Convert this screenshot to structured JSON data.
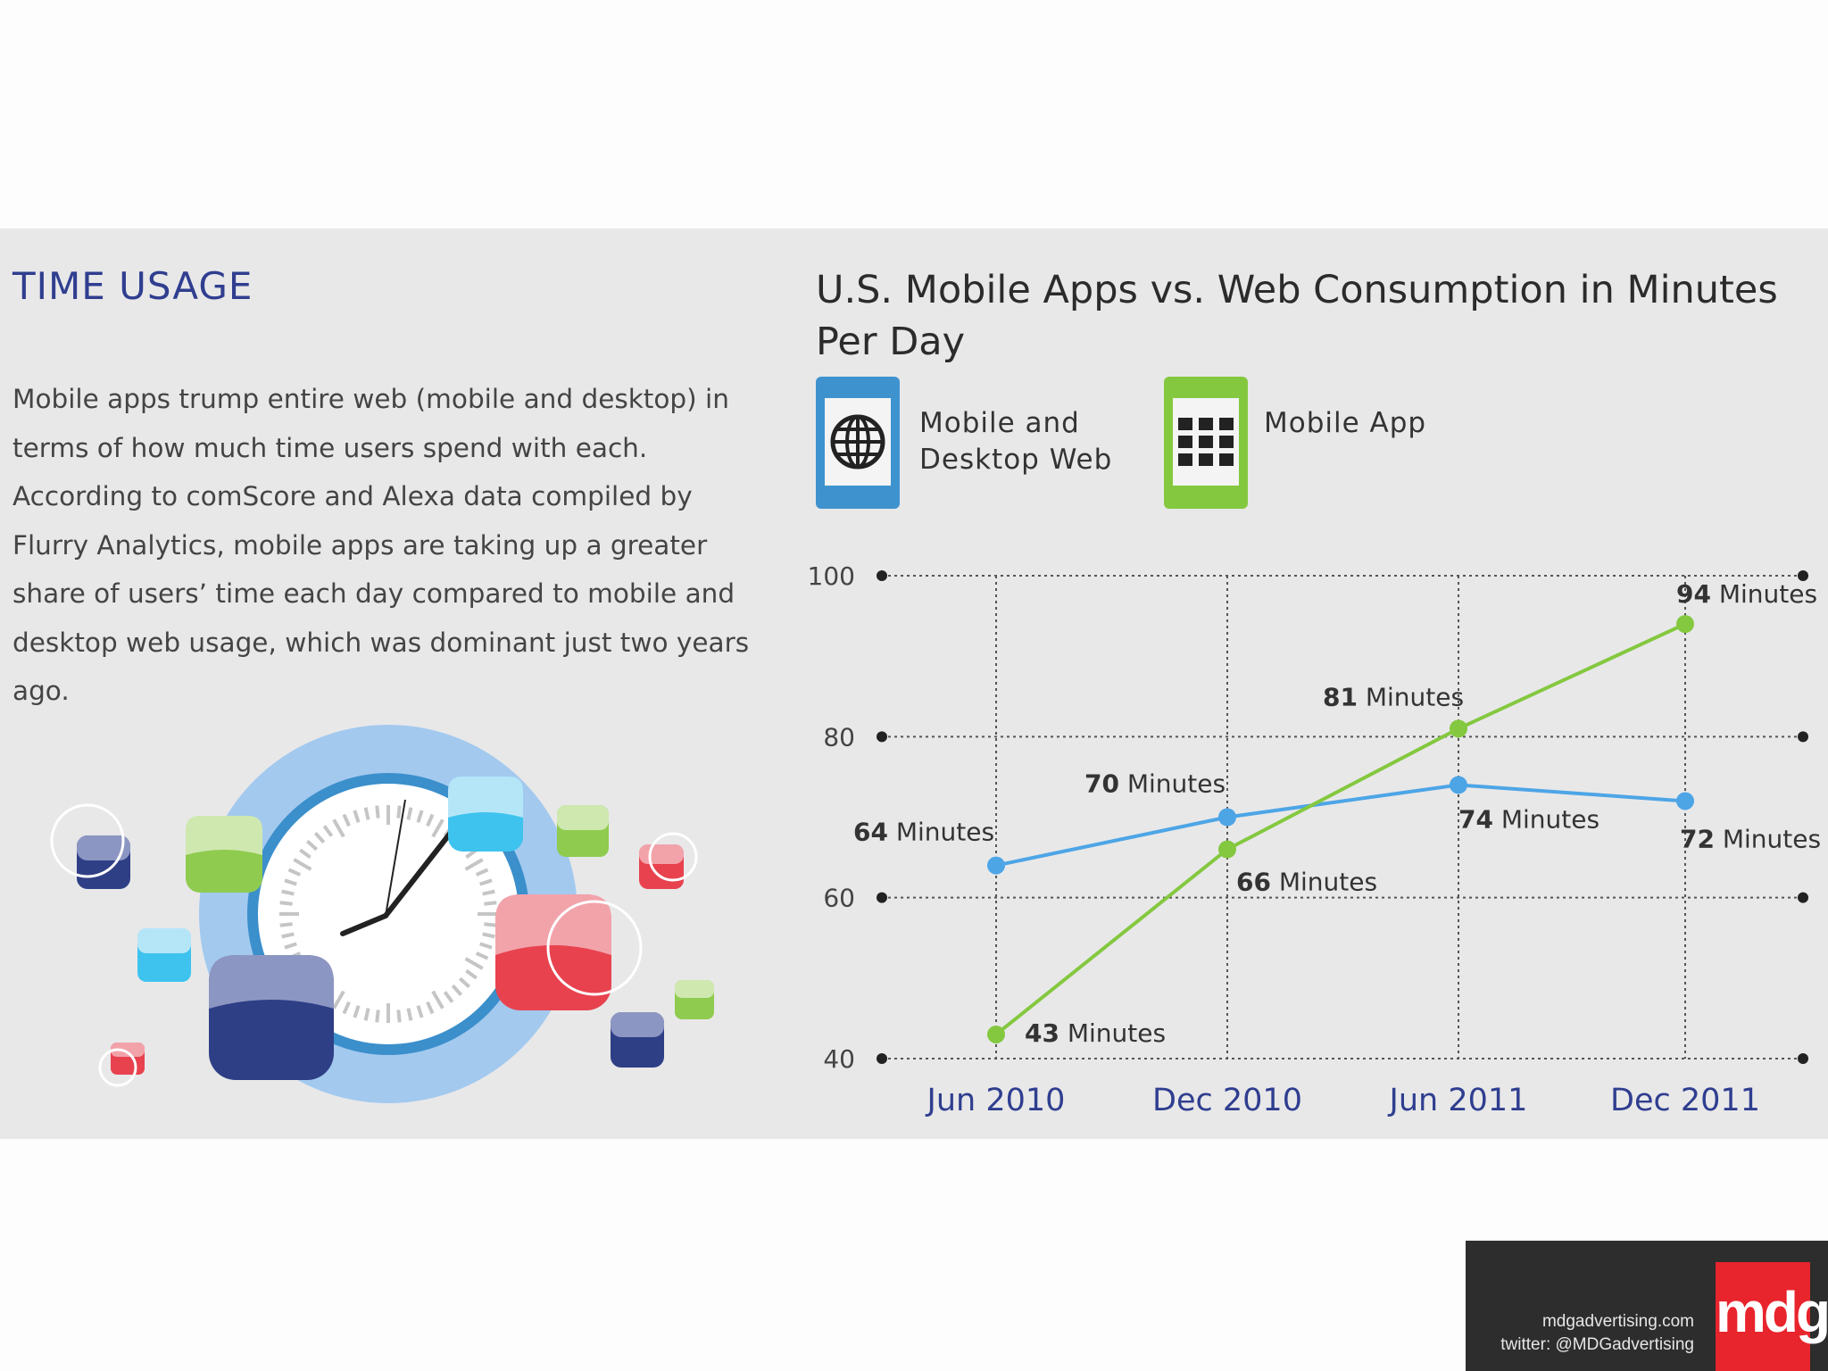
{
  "section": {
    "title": "TIME USAGE",
    "body": "Mobile apps trump entire web (mobile and desktop) in terms of how much time users spend with each. According to comScore and Alexa data compiled by Flurry Analytics, mobile apps are taking up a greater share of users’ time each day compared to mobile and desktop web usage, which was dominant just two years ago."
  },
  "legend": {
    "web_line1": "Mobile and",
    "web_line2": "Desktop Web",
    "app": "Mobile App",
    "web_icon": "globe-icon",
    "app_icon": "app-grid-icon"
  },
  "colors": {
    "web": "#4da5e6",
    "app": "#84c83f",
    "axis_label": "#2f3e8f",
    "title": "#2f3e8f"
  },
  "chart_data": {
    "type": "line",
    "title": "U.S. Mobile Apps vs. Web Consumption in Minutes Per Day",
    "categories": [
      "Jun 2010",
      "Dec 2010",
      "Jun 2011",
      "Dec 2011"
    ],
    "yticks": [
      100,
      80,
      60,
      40
    ],
    "ylim": [
      40,
      100
    ],
    "grid": true,
    "value_unit": "Minutes",
    "series": [
      {
        "name": "Mobile and Desktop Web",
        "key": "web",
        "values": [
          64,
          70,
          74,
          72
        ]
      },
      {
        "name": "Mobile App",
        "key": "app",
        "values": [
          43,
          66,
          81,
          94
        ]
      }
    ]
  },
  "footer": {
    "site": "mdgadvertising.com",
    "twitter": "twitter: @MDGadvertising",
    "logo_text": "mdg"
  }
}
